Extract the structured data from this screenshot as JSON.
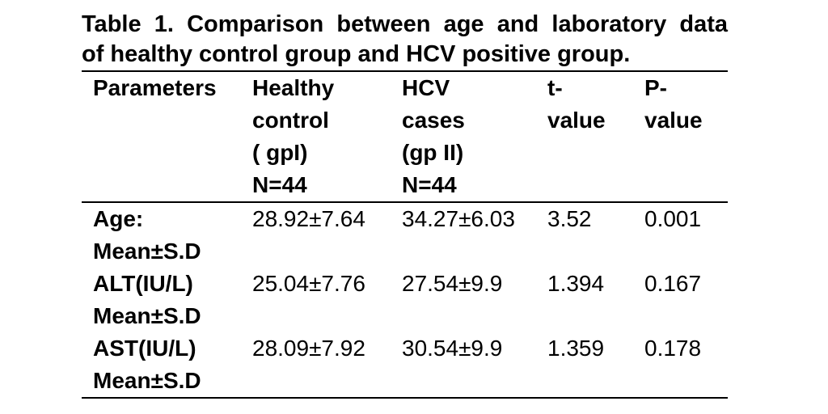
{
  "page": {
    "background_color": "#ffffff",
    "text_color": "#000000"
  },
  "table_caption": {
    "line1": "Table 1. Comparison between age and laboratory data",
    "line2": "of healthy control group and HCV positive group."
  },
  "table": {
    "header": {
      "columns": [
        {
          "id": "parameters",
          "lines": [
            "Parameters"
          ]
        },
        {
          "id": "healthy_control",
          "lines": [
            "Healthy",
            "control",
            "( gpI)",
            "N=44"
          ]
        },
        {
          "id": "hcv_cases",
          "lines": [
            "HCV",
            "cases",
            "(gp II)",
            "N=44"
          ]
        },
        {
          "id": "t_value",
          "lines": [
            "t-",
            "value"
          ]
        },
        {
          "id": "p_value",
          "lines": [
            "P-",
            "value"
          ]
        }
      ]
    },
    "rows": [
      {
        "parameter": [
          "Age:",
          "Mean±S.D"
        ],
        "healthy_control": "28.92±7.64",
        "hcv_cases": "34.27±6.03",
        "t_value": "3.52",
        "p_value": "0.001"
      },
      {
        "parameter": [
          "ALT(IU/L)",
          "Mean±S.D"
        ],
        "healthy_control": "25.04±7.76",
        "hcv_cases": "27.54±9.9",
        "t_value": "1.394",
        "p_value": "0.167"
      },
      {
        "parameter": [
          "AST(IU/L)",
          "Mean±S.D"
        ],
        "healthy_control": "28.09±7.92",
        "hcv_cases": "30.54±9.9",
        "t_value": "1.359",
        "p_value": "0.178"
      }
    ]
  }
}
